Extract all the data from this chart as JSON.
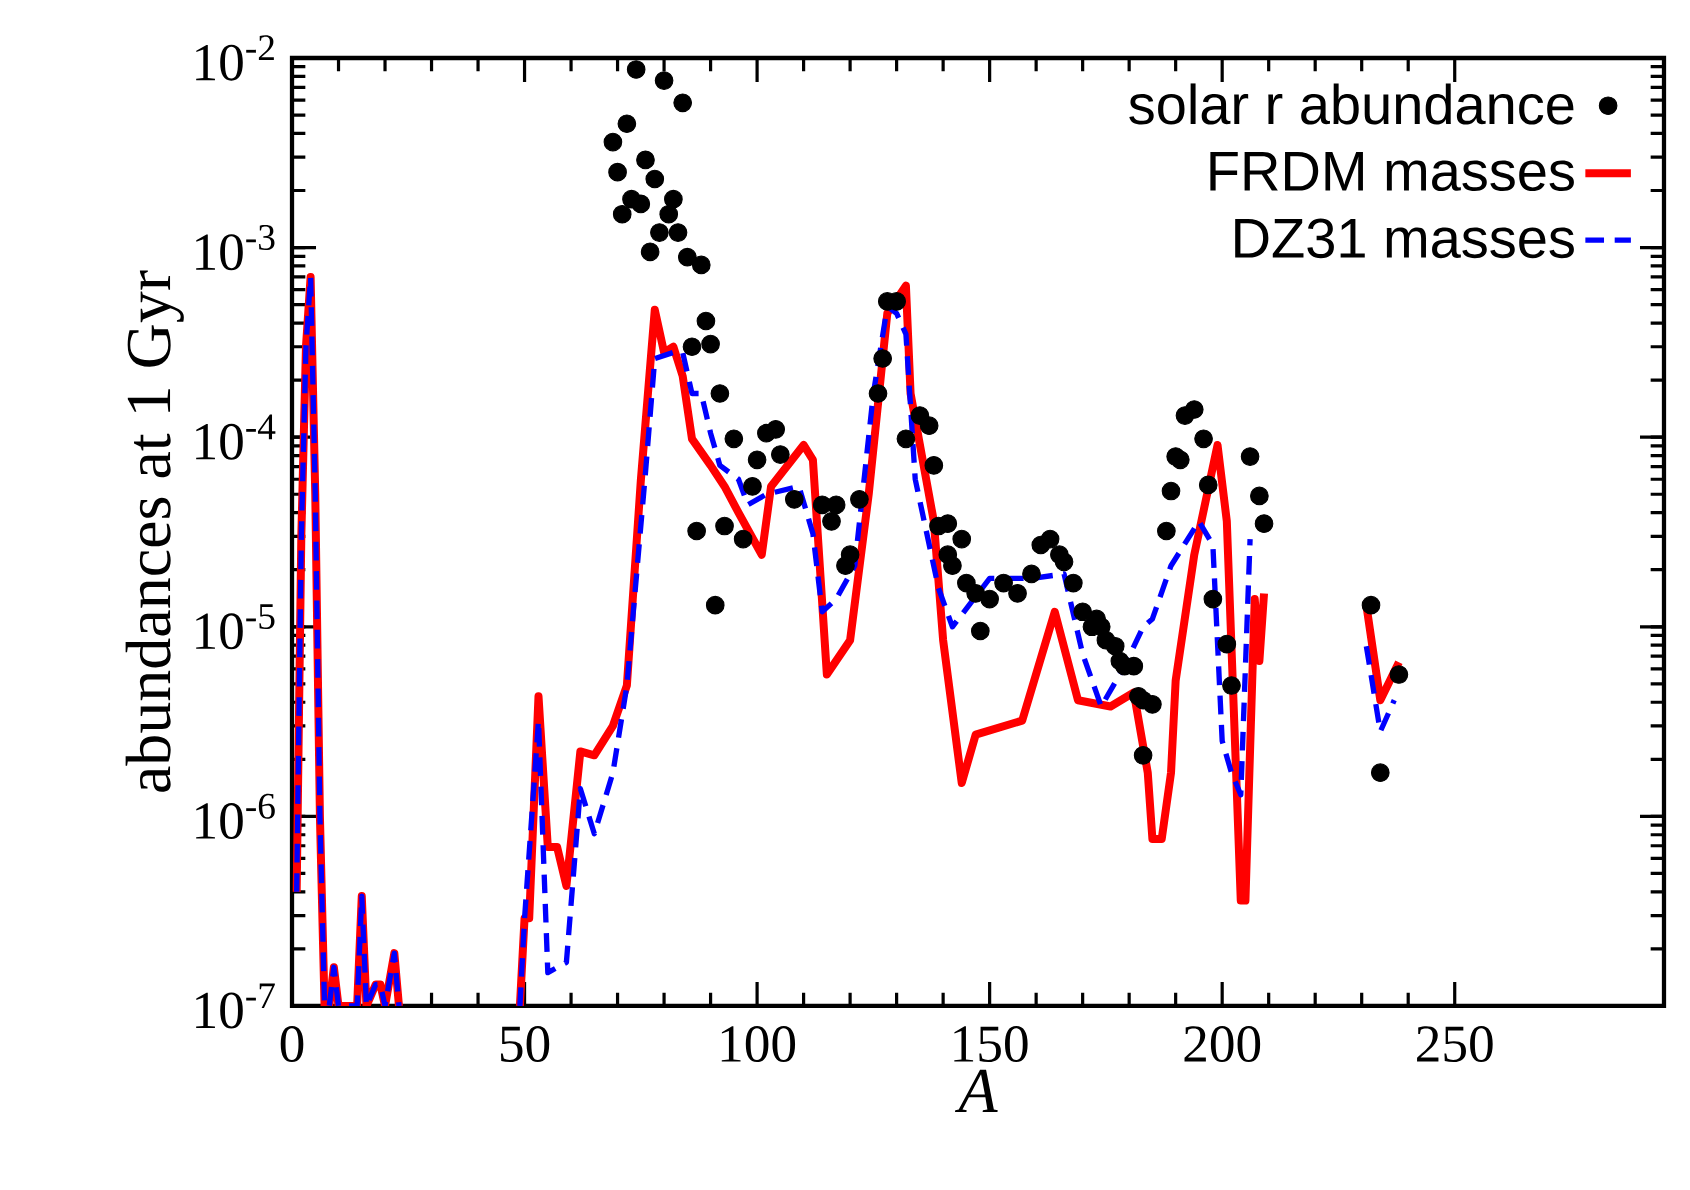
{
  "chart_data": {
    "type": "line",
    "xlabel": "A",
    "ylabel": "abundances at 1 Gyr",
    "log": "y",
    "xlim": [
      0,
      295
    ],
    "ylim": [
      1e-07,
      0.01
    ],
    "xticks": [
      0,
      50,
      100,
      150,
      200,
      250
    ],
    "yticks": [
      {
        "value": 1e-07,
        "label": "10$^{-7}$"
      },
      {
        "value": 1e-06,
        "label": "10$^{-6}$"
      },
      {
        "value": 1e-05,
        "label": "10$^{-5}$"
      },
      {
        "value": 0.0001,
        "label": "10$^{-4}$"
      },
      {
        "value": 0.001,
        "label": "10$^{-3}$"
      },
      {
        "value": 0.01,
        "label": "10$^{-2}$"
      }
    ],
    "legend": "top right",
    "series": [
      {
        "name": "solar r abundance",
        "type": "scatter",
        "color": "#000000",
        "marker": "circle",
        "x": [
          69,
          70,
          71,
          72,
          73,
          74,
          75,
          76,
          77,
          78,
          79,
          80,
          81,
          82,
          83,
          84,
          85,
          86,
          87,
          88,
          89,
          90,
          91,
          92,
          93,
          95,
          97,
          99,
          100,
          102,
          104,
          105,
          108,
          114,
          116,
          117,
          119,
          120,
          122,
          126,
          127,
          128,
          130,
          132,
          135,
          137,
          138,
          139,
          141,
          141,
          142,
          144,
          145,
          147,
          148,
          150,
          153,
          156,
          159,
          161,
          163,
          165,
          166,
          168,
          170,
          172,
          173,
          174,
          175,
          177,
          178,
          179,
          181,
          182,
          183,
          183,
          185,
          188,
          189,
          190,
          191,
          192,
          194,
          196,
          197,
          198,
          201,
          202,
          206,
          208,
          209,
          232,
          234,
          238
        ],
        "values": [
          0.0036,
          0.0025,
          0.0015,
          0.0045,
          0.0018,
          0.0087,
          0.0017,
          0.0029,
          0.00095,
          0.0023,
          0.0012,
          0.0076,
          0.0015,
          0.0018,
          0.0012,
          0.0058,
          0.00089,
          0.0003,
          3.2e-05,
          0.00081,
          0.00041,
          0.00031,
          1.3e-05,
          0.00017,
          3.4e-05,
          9.8e-05,
          2.9e-05,
          5.5e-05,
          7.6e-05,
          0.000105,
          0.00011,
          8.1e-05,
          4.7e-05,
          4.4e-05,
          3.6e-05,
          4.4e-05,
          2.1e-05,
          2.4e-05,
          4.7e-05,
          0.00017,
          0.00026,
          0.00052,
          0.00052,
          9.8e-05,
          0.00013,
          0.000115,
          7.1e-05,
          3.4e-05,
          3.5e-05,
          2.4e-05,
          2.1e-05,
          2.9e-05,
          1.7e-05,
          1.5e-05,
          9.5e-06,
          1.4e-05,
          1.7e-05,
          1.5e-05,
          1.9e-05,
          2.7e-05,
          2.9e-05,
          2.4e-05,
          2.2e-05,
          1.7e-05,
          1.2e-05,
          1e-05,
          1.1e-05,
          1e-05,
          8.5e-06,
          7.9e-06,
          6.6e-06,
          6.2e-06,
          6.2e-06,
          4.3e-06,
          4.1e-06,
          2.1e-06,
          3.9e-06,
          3.2e-05,
          5.2e-05,
          7.9e-05,
          7.6e-05,
          0.00013,
          0.00014,
          9.8e-05,
          5.6e-05,
          1.4e-05,
          8.1e-06,
          4.9e-06,
          7.9e-05,
          4.9e-05,
          3.5e-05,
          1.3e-05,
          1.7e-06,
          5.6e-06
        ]
      },
      {
        "name": "FRDM masses",
        "color": "#ff0000",
        "line_style": "solid",
        "marker": "none",
        "x": [
          1,
          2,
          3,
          4,
          5,
          6,
          7,
          8,
          9,
          10,
          14,
          15,
          16,
          18,
          19,
          20,
          22,
          23,
          30,
          49,
          50,
          51,
          53,
          55,
          57,
          59,
          62,
          65,
          69,
          72,
          75,
          78,
          80,
          82,
          84,
          86,
          90,
          93,
          96,
          101,
          103,
          110,
          112,
          115,
          120,
          124,
          128,
          132,
          133,
          138,
          140,
          144,
          147,
          157,
          164,
          169,
          176,
          181,
          184,
          185,
          187,
          189,
          190,
          194,
          199,
          201,
          203,
          204,
          205,
          207,
          208,
          209,
          220,
          231,
          234,
          238
        ],
        "values": [
          4e-07,
          3e-05,
          0.0003,
          0.0007,
          5e-05,
          1e-06,
          1e-07,
          1e-07,
          1.6e-07,
          1e-07,
          1e-07,
          3.8e-07,
          1e-07,
          1.3e-07,
          1.3e-07,
          1e-07,
          1.9e-07,
          1e-07,
          null,
          1e-07,
          2.9e-07,
          2.9e-07,
          4.3e-06,
          6.9e-07,
          6.9e-07,
          4.3e-07,
          2.2e-06,
          2.1e-06,
          3e-06,
          4.9e-06,
          5.9e-05,
          0.00047,
          0.00028,
          0.0003,
          0.00021,
          9.8e-05,
          7.1e-05,
          5.5e-05,
          4e-05,
          2.4e-05,
          5.5e-05,
          9.1e-05,
          7.6e-05,
          5.6e-06,
          8.5e-06,
          5e-05,
          0.00045,
          0.00063,
          0.00017,
          3.6e-05,
          8.5e-06,
          1.5e-06,
          2.7e-06,
          3.2e-06,
          1.2e-05,
          4.1e-06,
          3.8e-06,
          4.5e-06,
          1.7e-06,
          7.6e-07,
          7.6e-07,
          1.7e-06,
          5.2e-06,
          2.4e-05,
          9.1e-05,
          3.6e-05,
          1.7e-06,
          3.6e-07,
          3.6e-07,
          1.4e-05,
          6.6e-06,
          1.5e-05,
          null,
          1.3e-05,
          4.1e-06,
          6.5e-06
        ]
      },
      {
        "name": "DZ31 masses",
        "color": "#0000ff",
        "line_style": "dashed",
        "marker": "none",
        "x": [
          1,
          2,
          3,
          4,
          5,
          6,
          7,
          8,
          9,
          10,
          14,
          15,
          16,
          18,
          19,
          20,
          22,
          23,
          30,
          49,
          50,
          53,
          55,
          59,
          62,
          65,
          69,
          72,
          76,
          78,
          82,
          84,
          86,
          88,
          90,
          92,
          96,
          98,
          102,
          109,
          112,
          114,
          117,
          121,
          125,
          128,
          130,
          132,
          134,
          139,
          142,
          150,
          159,
          166,
          170,
          174,
          179,
          183,
          185,
          189,
          195,
          198,
          200,
          202,
          204,
          206,
          220,
          231,
          234,
          237
        ],
        "values": [
          4e-07,
          3e-05,
          0.0003,
          0.0007,
          5e-05,
          1e-06,
          1e-07,
          1e-07,
          1.6e-07,
          1e-07,
          1e-07,
          3.8e-07,
          1e-07,
          1.3e-07,
          1.3e-07,
          1e-07,
          1.9e-07,
          1e-07,
          null,
          1e-07,
          2.9e-07,
          3.2e-06,
          1.5e-07,
          1.7e-07,
          1.4e-06,
          8.1e-07,
          1.7e-06,
          4.9e-06,
          6.5e-05,
          0.00026,
          0.00028,
          0.00028,
          0.00017,
          0.00017,
          0.000105,
          7.1e-05,
          6e-05,
          4.4e-05,
          5e-05,
          5.5e-05,
          3.1e-05,
          1.2e-05,
          1.4e-05,
          2.1e-05,
          0.00017,
          0.00049,
          0.00045,
          0.00035,
          6e-05,
          1.6e-05,
          1e-05,
          1.8e-05,
          1.8e-05,
          1.9e-05,
          7.2e-06,
          3.8e-06,
          6.2e-06,
          1e-05,
          1.1e-05,
          2.1e-05,
          3.6e-05,
          2.7e-05,
          2.5e-06,
          1.7e-06,
          1.3e-06,
          2.9e-05,
          null,
          7.9e-06,
          2.8e-06,
          4.1e-06
        ]
      }
    ]
  }
}
